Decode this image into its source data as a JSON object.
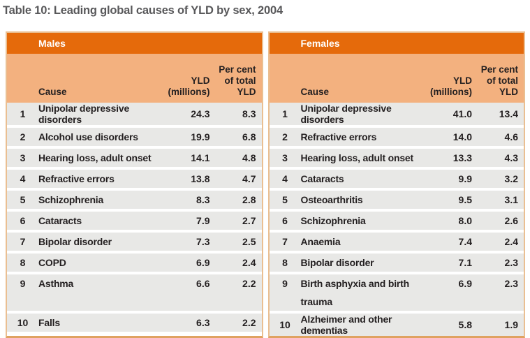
{
  "title": "Table 10: Leading global causes of YLD by sex, 2004",
  "columns": {
    "cause": "Cause",
    "yld_line1": "YLD",
    "yld_line2": "(millions)",
    "pct_line1": "Per cent",
    "pct_line2": "of total",
    "pct_line3": "YLD"
  },
  "tables": [
    {
      "group": "Males",
      "rows": [
        {
          "rank": "1",
          "cause": "Unipolar depressive disorders",
          "yld": "24.3",
          "pct": "8.3"
        },
        {
          "rank": "2",
          "cause": "Alcohol use disorders",
          "yld": "19.9",
          "pct": "6.8"
        },
        {
          "rank": "3",
          "cause": "Hearing loss, adult onset",
          "yld": "14.1",
          "pct": "4.8"
        },
        {
          "rank": "4",
          "cause": "Refractive errors",
          "yld": "13.8",
          "pct": "4.7"
        },
        {
          "rank": "5",
          "cause": "Schizophrenia",
          "yld": "8.3",
          "pct": "2.8"
        },
        {
          "rank": "6",
          "cause": "Cataracts",
          "yld": "7.9",
          "pct": "2.7"
        },
        {
          "rank": "7",
          "cause": "Bipolar disorder",
          "yld": "7.3",
          "pct": "2.5"
        },
        {
          "rank": "8",
          "cause": "COPD",
          "yld": "6.9",
          "pct": "2.4"
        },
        {
          "rank": "9",
          "cause": "Asthma",
          "yld": "6.6",
          "pct": "2.2",
          "tall": true
        },
        {
          "rank": "10",
          "cause": "Falls",
          "yld": "6.3",
          "pct": "2.2"
        }
      ]
    },
    {
      "group": "Females",
      "rows": [
        {
          "rank": "1",
          "cause": "Unipolar depressive disorders",
          "yld": "41.0",
          "pct": "13.4"
        },
        {
          "rank": "2",
          "cause": "Refractive errors",
          "yld": "14.0",
          "pct": "4.6"
        },
        {
          "rank": "3",
          "cause": "Hearing loss, adult onset",
          "yld": "13.3",
          "pct": "4.3"
        },
        {
          "rank": "4",
          "cause": "Cataracts",
          "yld": "9.9",
          "pct": "3.2"
        },
        {
          "rank": "5",
          "cause": "Osteoarthritis",
          "yld": "9.5",
          "pct": "3.1"
        },
        {
          "rank": "6",
          "cause": "Schizophrenia",
          "yld": "8.0",
          "pct": "2.6"
        },
        {
          "rank": "7",
          "cause": "Anaemia",
          "yld": "7.4",
          "pct": "2.4"
        },
        {
          "rank": "8",
          "cause": "Bipolar disorder",
          "yld": "7.1",
          "pct": "2.3"
        },
        {
          "rank": "9",
          "cause": "Birth asphyxia and birth trauma",
          "yld": "6.9",
          "pct": "2.3",
          "tall": true
        },
        {
          "rank": "10",
          "cause": "Alzheimer and other dementias",
          "yld": "5.8",
          "pct": "1.9"
        }
      ]
    }
  ],
  "colors": {
    "header_orange": "#e56a0b",
    "subheader_orange": "#f3b17f",
    "row_gray": "#e8e8e6",
    "border_tan": "#eabf92",
    "title_gray": "#58585a",
    "text": "#231f20"
  }
}
